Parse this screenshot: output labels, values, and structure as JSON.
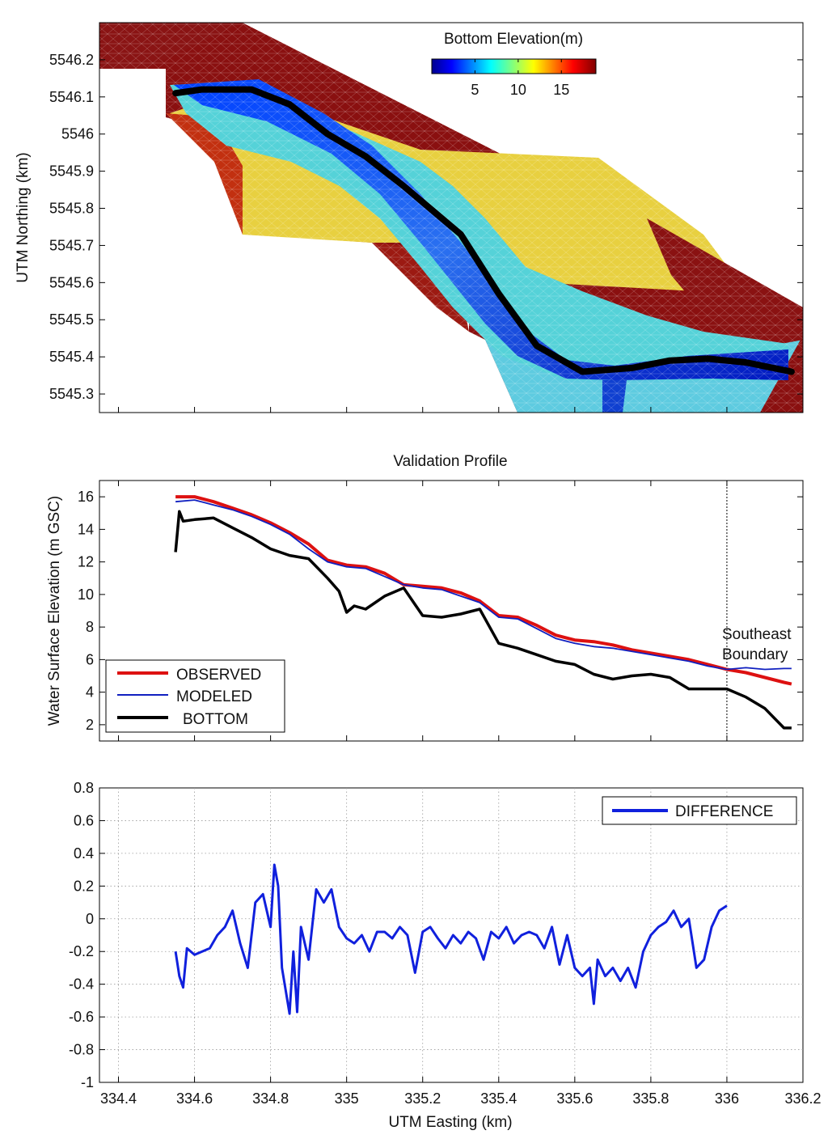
{
  "chart_data": [
    {
      "type": "heatmap",
      "title": "",
      "xlabel": "",
      "ylabel": "UTM Northing (km)",
      "xlim": [
        334.35,
        336.2
      ],
      "ylim": [
        5545.25,
        5546.3
      ],
      "x_ticks": [
        334.4,
        334.6,
        334.8,
        335.0,
        335.2,
        335.4,
        335.6,
        335.8,
        336.0,
        336.2
      ],
      "y_tick_labels": [
        "5546.2",
        "5546.1",
        "5546",
        "5545.9",
        "5545.8",
        "5545.7",
        "5545.6",
        "5545.5",
        "5545.4",
        "5545.3"
      ],
      "y_ticks": [
        5546.2,
        5546.1,
        5546.0,
        5545.9,
        5545.8,
        5545.7,
        5545.6,
        5545.5,
        5545.4,
        5545.3
      ],
      "colorbar": {
        "label": "Bottom Elevation(m)",
        "range": [
          0,
          19
        ],
        "ticks": [
          5,
          10,
          15
        ],
        "tick_labels": [
          "5",
          "10",
          "15"
        ]
      },
      "profile_line": {
        "name": "validation profile path",
        "x": [
          334.55,
          334.62,
          334.75,
          334.85,
          334.95,
          335.05,
          335.15,
          335.3,
          335.4,
          335.5,
          335.62,
          335.75,
          335.85,
          335.95,
          336.05,
          336.17
        ],
        "y": [
          5546.11,
          5546.12,
          5546.12,
          5546.08,
          5546.0,
          5545.94,
          5545.86,
          5545.73,
          5545.57,
          5545.43,
          5545.36,
          5545.37,
          5545.39,
          5545.395,
          5545.385,
          5545.36
        ]
      }
    },
    {
      "type": "line",
      "title": "Validation Profile",
      "xlabel": "",
      "ylabel": "Water Surface Elevation (m GSC)",
      "xlim": [
        334.35,
        336.2
      ],
      "ylim": [
        1,
        17
      ],
      "y_ticks": [
        2,
        4,
        6,
        8,
        10,
        12,
        14,
        16
      ],
      "y_tick_labels": [
        "2",
        "4",
        "6",
        "8",
        "10",
        "12",
        "14",
        "16"
      ],
      "x_ticks": [
        334.4,
        334.6,
        334.8,
        335.0,
        335.2,
        335.4,
        335.6,
        335.8,
        336.0,
        336.2
      ],
      "grid": false,
      "legend_position": "bottom-left",
      "annotations": [
        {
          "text": "Southeast",
          "at_x": 336.0
        },
        {
          "text": "Boundary",
          "at_x": 336.0
        }
      ],
      "vline_x": 336.0,
      "series": [
        {
          "name": "OBSERVED",
          "color": "#dd1111",
          "x": [
            334.55,
            334.6,
            334.65,
            334.7,
            334.75,
            334.8,
            334.85,
            334.9,
            334.95,
            335.0,
            335.05,
            335.1,
            335.15,
            335.2,
            335.25,
            335.3,
            335.35,
            335.4,
            335.45,
            335.5,
            335.55,
            335.6,
            335.65,
            335.7,
            335.75,
            335.8,
            335.85,
            335.9,
            335.95,
            336.0,
            336.05,
            336.1,
            336.15,
            336.17
          ],
          "y": [
            16.0,
            16.0,
            15.7,
            15.3,
            14.9,
            14.4,
            13.8,
            13.1,
            12.1,
            11.8,
            11.7,
            11.3,
            10.6,
            10.5,
            10.4,
            10.1,
            9.6,
            8.7,
            8.6,
            8.1,
            7.5,
            7.2,
            7.1,
            6.9,
            6.6,
            6.4,
            6.2,
            6.0,
            5.7,
            5.4,
            5.2,
            4.9,
            4.6,
            4.5
          ]
        },
        {
          "name": "MODELED",
          "color": "#1020c0",
          "x": [
            334.55,
            334.6,
            334.65,
            334.7,
            334.75,
            334.8,
            334.85,
            334.9,
            334.95,
            335.0,
            335.05,
            335.1,
            335.15,
            335.2,
            335.25,
            335.3,
            335.35,
            335.4,
            335.45,
            335.5,
            335.55,
            335.6,
            335.65,
            335.7,
            335.75,
            335.8,
            335.85,
            335.9,
            335.95,
            336.0,
            336.05,
            336.1,
            336.15,
            336.17
          ],
          "y": [
            15.7,
            15.8,
            15.5,
            15.2,
            14.8,
            14.3,
            13.7,
            12.8,
            12.0,
            11.7,
            11.6,
            11.1,
            10.6,
            10.4,
            10.3,
            9.9,
            9.5,
            8.6,
            8.5,
            7.9,
            7.3,
            7.0,
            6.8,
            6.7,
            6.5,
            6.3,
            6.1,
            5.9,
            5.6,
            5.4,
            5.5,
            5.4,
            5.45,
            5.45
          ]
        },
        {
          "name": "BOTTOM",
          "color": "#000000",
          "x": [
            334.55,
            334.56,
            334.57,
            334.6,
            334.65,
            334.7,
            334.75,
            334.8,
            334.85,
            334.9,
            334.95,
            334.98,
            335.0,
            335.02,
            335.05,
            335.1,
            335.15,
            335.2,
            335.25,
            335.3,
            335.35,
            335.4,
            335.45,
            335.5,
            335.55,
            335.6,
            335.65,
            335.7,
            335.75,
            335.8,
            335.85,
            335.9,
            335.95,
            336.0,
            336.05,
            336.1,
            336.15,
            336.17
          ],
          "y": [
            12.6,
            15.1,
            14.5,
            14.6,
            14.7,
            14.1,
            13.5,
            12.8,
            12.4,
            12.2,
            11.0,
            10.2,
            8.9,
            9.3,
            9.1,
            9.9,
            10.4,
            8.7,
            8.6,
            8.8,
            9.1,
            7.0,
            6.7,
            6.3,
            5.9,
            5.7,
            5.1,
            4.8,
            5.0,
            5.1,
            4.9,
            4.2,
            4.2,
            4.2,
            3.7,
            3.0,
            1.8,
            1.8
          ]
        }
      ]
    },
    {
      "type": "line",
      "title": "",
      "xlabel": "UTM Easting (km)",
      "ylabel": "",
      "xlim": [
        334.35,
        336.2
      ],
      "ylim": [
        -1,
        0.8
      ],
      "y_ticks": [
        0.8,
        0.6,
        0.4,
        0.2,
        0,
        -0.2,
        -0.4,
        -0.6,
        -0.8,
        -1
      ],
      "y_tick_labels": [
        "0.8",
        "0.6",
        "0.4",
        "0.2",
        "0",
        "-0.2",
        "-0.4",
        "-0.6",
        "-0.8",
        "-1"
      ],
      "x_ticks": [
        334.4,
        334.6,
        334.8,
        335.0,
        335.2,
        335.4,
        335.6,
        335.8,
        336.0,
        336.2
      ],
      "x_tick_labels": [
        "334.4",
        "334.6",
        "334.8",
        "335",
        "335.2",
        "335.4",
        "335.6",
        "335.8",
        "336",
        "336.2"
      ],
      "grid": true,
      "legend_position": "top-right",
      "series": [
        {
          "name": "DIFFERENCE",
          "color": "#1020dd",
          "x": [
            334.55,
            334.56,
            334.57,
            334.58,
            334.6,
            334.62,
            334.64,
            334.66,
            334.68,
            334.7,
            334.72,
            334.74,
            334.76,
            334.78,
            334.8,
            334.81,
            334.82,
            334.83,
            334.85,
            334.86,
            334.87,
            334.88,
            334.9,
            334.92,
            334.94,
            334.96,
            334.98,
            335.0,
            335.02,
            335.04,
            335.06,
            335.08,
            335.1,
            335.12,
            335.14,
            335.16,
            335.18,
            335.2,
            335.22,
            335.24,
            335.26,
            335.28,
            335.3,
            335.32,
            335.34,
            335.36,
            335.38,
            335.4,
            335.42,
            335.44,
            335.46,
            335.48,
            335.5,
            335.52,
            335.54,
            335.56,
            335.58,
            335.6,
            335.62,
            335.64,
            335.65,
            335.66,
            335.68,
            335.7,
            335.72,
            335.74,
            335.76,
            335.78,
            335.8,
            335.82,
            335.84,
            335.86,
            335.88,
            335.9,
            335.92,
            335.94,
            335.96,
            335.98,
            336.0
          ],
          "y": [
            -0.2,
            -0.35,
            -0.42,
            -0.18,
            -0.22,
            -0.2,
            -0.18,
            -0.1,
            -0.05,
            0.05,
            -0.15,
            -0.3,
            0.1,
            0.15,
            -0.05,
            0.33,
            0.2,
            -0.3,
            -0.58,
            -0.2,
            -0.57,
            -0.05,
            -0.25,
            0.18,
            0.1,
            0.18,
            -0.05,
            -0.12,
            -0.15,
            -0.1,
            -0.2,
            -0.08,
            -0.08,
            -0.12,
            -0.05,
            -0.1,
            -0.33,
            -0.08,
            -0.05,
            -0.12,
            -0.18,
            -0.1,
            -0.15,
            -0.08,
            -0.12,
            -0.25,
            -0.08,
            -0.12,
            -0.05,
            -0.15,
            -0.1,
            -0.08,
            -0.1,
            -0.18,
            -0.05,
            -0.28,
            -0.1,
            -0.3,
            -0.35,
            -0.3,
            -0.52,
            -0.25,
            -0.35,
            -0.3,
            -0.38,
            -0.3,
            -0.42,
            -0.2,
            -0.1,
            -0.05,
            -0.02,
            0.05,
            -0.05,
            0.0,
            -0.3,
            -0.25,
            -0.05,
            0.05,
            0.08
          ]
        }
      ]
    }
  ]
}
